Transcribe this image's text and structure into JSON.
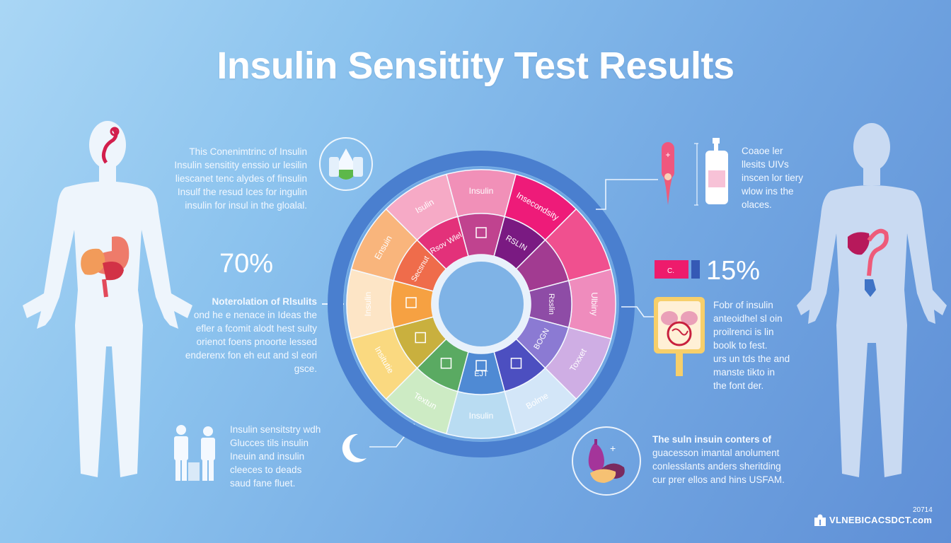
{
  "header": {
    "title": "Insulin Sensitity Test Results"
  },
  "left_panel": {
    "intro_text": [
      "This Conenimtrinc of Insulin",
      "Insulin sensitity enssio ur lesilin",
      "liescanet tenc alydes of finsulin",
      "Insulf the resud Ices for ingulin",
      "insulin for insul in the gloalal."
    ],
    "stat_value": "70%",
    "stat_heading": "Noterolation of Rlsulits",
    "stat_text": [
      "ond he e nenace in Ideas the",
      "efler a fcomit alodt hest sulty",
      "orienot foens pnoorte lessed",
      "enderenx fon eh eut and sl eori gsce."
    ],
    "bottom_text": [
      "Insulin sensitstry wdh",
      "Glucces tils insulin",
      "Ineuin and insulin",
      "cleeces to deads",
      "saud fane fluet."
    ]
  },
  "right_panel": {
    "top_text": [
      "Coaoe ler",
      "llesits UIVs",
      "inscen lor tiery",
      "wlow ins the",
      "olaces."
    ],
    "stat_value": "15%",
    "stat_text": [
      "Fobr of insulin",
      "anteoidhel sl oin",
      "proilrenci is lin",
      "boolk to fest.",
      "urs un tds the and",
      "manste tikto in",
      "the font der."
    ],
    "bottom_text_lead": "The suln insuin conters of",
    "bottom_text": [
      "guacesson imantal anolument",
      "conlesslants anders sheritding",
      "cur prer ellos and hins USFAM."
    ]
  },
  "wheel": {
    "outer_segments": [
      {
        "label": "Insulin",
        "color": "#f190b8"
      },
      {
        "label": "Insecondsity",
        "color": "#ee1b79"
      },
      {
        "label": "",
        "color": "#f0508f"
      },
      {
        "label": "Ulbiny",
        "color": "#ef8cbd"
      },
      {
        "label": "Toxxet",
        "color": "#cfaee4"
      },
      {
        "label": "Bolme",
        "color": "#d3e6f8"
      },
      {
        "label": "Insulin",
        "color": "#b9dcf2"
      },
      {
        "label": "Textun",
        "color": "#cdebc4"
      },
      {
        "label": "Insitutie",
        "color": "#fad980"
      },
      {
        "label": "Insulin",
        "color": "#fde5c6"
      },
      {
        "label": "Ensuin",
        "color": "#f9b57c"
      },
      {
        "label": "Isulin",
        "color": "#f6aac6"
      }
    ],
    "inner_segments": [
      {
        "label": "",
        "icon": "house-icon",
        "color": "#c0438f"
      },
      {
        "label": "RSLIN",
        "color": "#7a1a82"
      },
      {
        "label": "",
        "color": "#a23b91"
      },
      {
        "label": "Rsslin",
        "color": "#8e4ca6"
      },
      {
        "label": "BOGN",
        "color": "#8b7ad3"
      },
      {
        "label": "",
        "icon": "scribble-icon",
        "color": "#4c4fc0"
      },
      {
        "label": "EJT",
        "icon": "lightning-icon",
        "color": "#4f8ad4"
      },
      {
        "label": "",
        "icon": "chart-icon",
        "color": "#5aaa62"
      },
      {
        "label": "",
        "icon": "cup-icon",
        "color": "#c9b03e"
      },
      {
        "label": "",
        "icon": "chart-icon",
        "color": "#f6a142"
      },
      {
        "label": "Secsnut",
        "color": "#ef6c4b"
      },
      {
        "label": "Rsov Wlel",
        "color": "#e3317a"
      }
    ]
  },
  "footer": {
    "year": "20714",
    "brand": "VLNEBICACSDCT.com"
  },
  "colors": {
    "bg_light": "#a9d6f5",
    "bg_dark": "#5f8fd6",
    "ring_blue": "#4a7fcf",
    "body_left": "#eef5fc",
    "body_right": "#c9daf2"
  }
}
